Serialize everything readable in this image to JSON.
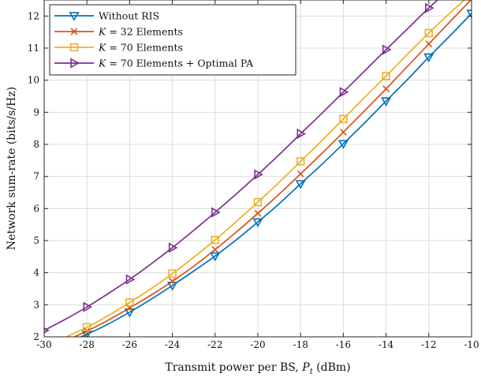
{
  "chart_data": {
    "type": "line",
    "title": "",
    "xlabel": "Transmit power per BS, P_t (dBm)",
    "xlabel_parts": {
      "before": "Transmit power per BS, ",
      "var": "P",
      "sub": "t",
      "after": " (dBm)"
    },
    "ylabel": "Network sum-rate (bits/s/Hz)",
    "xlim": [
      -30,
      -10
    ],
    "ylim": [
      2,
      12.5
    ],
    "xticks": [
      -30,
      -28,
      -26,
      -24,
      -22,
      -20,
      -18,
      -16,
      -14,
      -12,
      -10
    ],
    "yticks": [
      2,
      3,
      4,
      5,
      6,
      7,
      8,
      9,
      10,
      11,
      12
    ],
    "grid": true,
    "legend_position": "top-left",
    "series": [
      {
        "name": "Without RIS",
        "legend_parts": {
          "pre": "",
          "var": "",
          "post": "Without RIS"
        },
        "color": "#0072BD",
        "marker": "triangle-down",
        "x": [
          -30,
          -29,
          -28,
          -27,
          -26,
          -25,
          -24,
          -23,
          -22,
          -21,
          -20,
          -19,
          -18,
          -17,
          -16,
          -15,
          -14,
          -13,
          -12,
          -11,
          -10
        ],
        "y": [
          1.55,
          1.8,
          2.08,
          2.4,
          2.77,
          3.17,
          3.6,
          4.05,
          4.52,
          5.03,
          5.58,
          6.15,
          6.77,
          7.38,
          8.02,
          8.67,
          9.35,
          10.02,
          10.72,
          11.39,
          12.08
        ],
        "marker_x": [
          -28,
          -26,
          -24,
          -22,
          -20,
          -18,
          -16,
          -14,
          -12,
          -10
        ]
      },
      {
        "name": "K = 32 Elements",
        "legend_parts": {
          "pre": "",
          "var": "K",
          "post": " = 32 Elements"
        },
        "color": "#D95319",
        "marker": "x",
        "x": [
          -30,
          -29,
          -28,
          -27,
          -26,
          -25,
          -24,
          -23,
          -22,
          -21,
          -20,
          -19,
          -18,
          -17,
          -16,
          -15,
          -14,
          -13,
          -12,
          -11,
          -10
        ],
        "y": [
          1.62,
          1.88,
          2.18,
          2.52,
          2.9,
          3.3,
          3.73,
          4.2,
          4.72,
          5.27,
          5.85,
          6.45,
          7.08,
          7.72,
          8.38,
          9.05,
          9.73,
          10.43,
          11.13,
          11.83,
          12.52
        ],
        "marker_x": [
          -28,
          -26,
          -24,
          -22,
          -20,
          -18,
          -16,
          -14,
          -12,
          -10
        ]
      },
      {
        "name": "K = 70 Elements",
        "legend_parts": {
          "pre": "",
          "var": "K",
          "post": " = 70 Elements"
        },
        "color": "#EDB120",
        "marker": "square",
        "x": [
          -30,
          -29,
          -28,
          -27,
          -26,
          -25,
          -24,
          -23,
          -22,
          -21,
          -20,
          -19,
          -18,
          -17,
          -16,
          -15,
          -14,
          -13,
          -12,
          -11,
          -10
        ],
        "y": [
          1.72,
          1.99,
          2.3,
          2.66,
          3.07,
          3.5,
          3.97,
          4.48,
          5.02,
          5.6,
          6.2,
          6.82,
          7.47,
          8.12,
          8.79,
          9.47,
          10.13,
          10.81,
          11.47,
          12.1,
          12.7
        ],
        "marker_x": [
          -28,
          -26,
          -24,
          -22,
          -20,
          -18,
          -16,
          -14,
          -12
        ]
      },
      {
        "name": "K = 70 Elements + Optimal PA",
        "legend_parts": {
          "pre": "",
          "var": "K",
          "post": " = 70 Elements + Optimal PA"
        },
        "color": "#7E2F8E",
        "marker": "triangle-right",
        "x": [
          -30,
          -29,
          -28,
          -27,
          -26,
          -25,
          -24,
          -23,
          -22,
          -21,
          -20,
          -19,
          -18,
          -17,
          -16,
          -15,
          -14,
          -13,
          -12,
          -11,
          -10
        ],
        "y": [
          2.2,
          2.55,
          2.93,
          3.35,
          3.79,
          4.27,
          4.78,
          5.32,
          5.88,
          6.46,
          7.06,
          7.68,
          8.33,
          8.97,
          9.63,
          10.29,
          10.95,
          11.6,
          12.25,
          12.85,
          13.4
        ],
        "marker_x": [
          -30,
          -28,
          -26,
          -24,
          -22,
          -20,
          -18,
          -16,
          -14,
          -12
        ]
      }
    ]
  }
}
